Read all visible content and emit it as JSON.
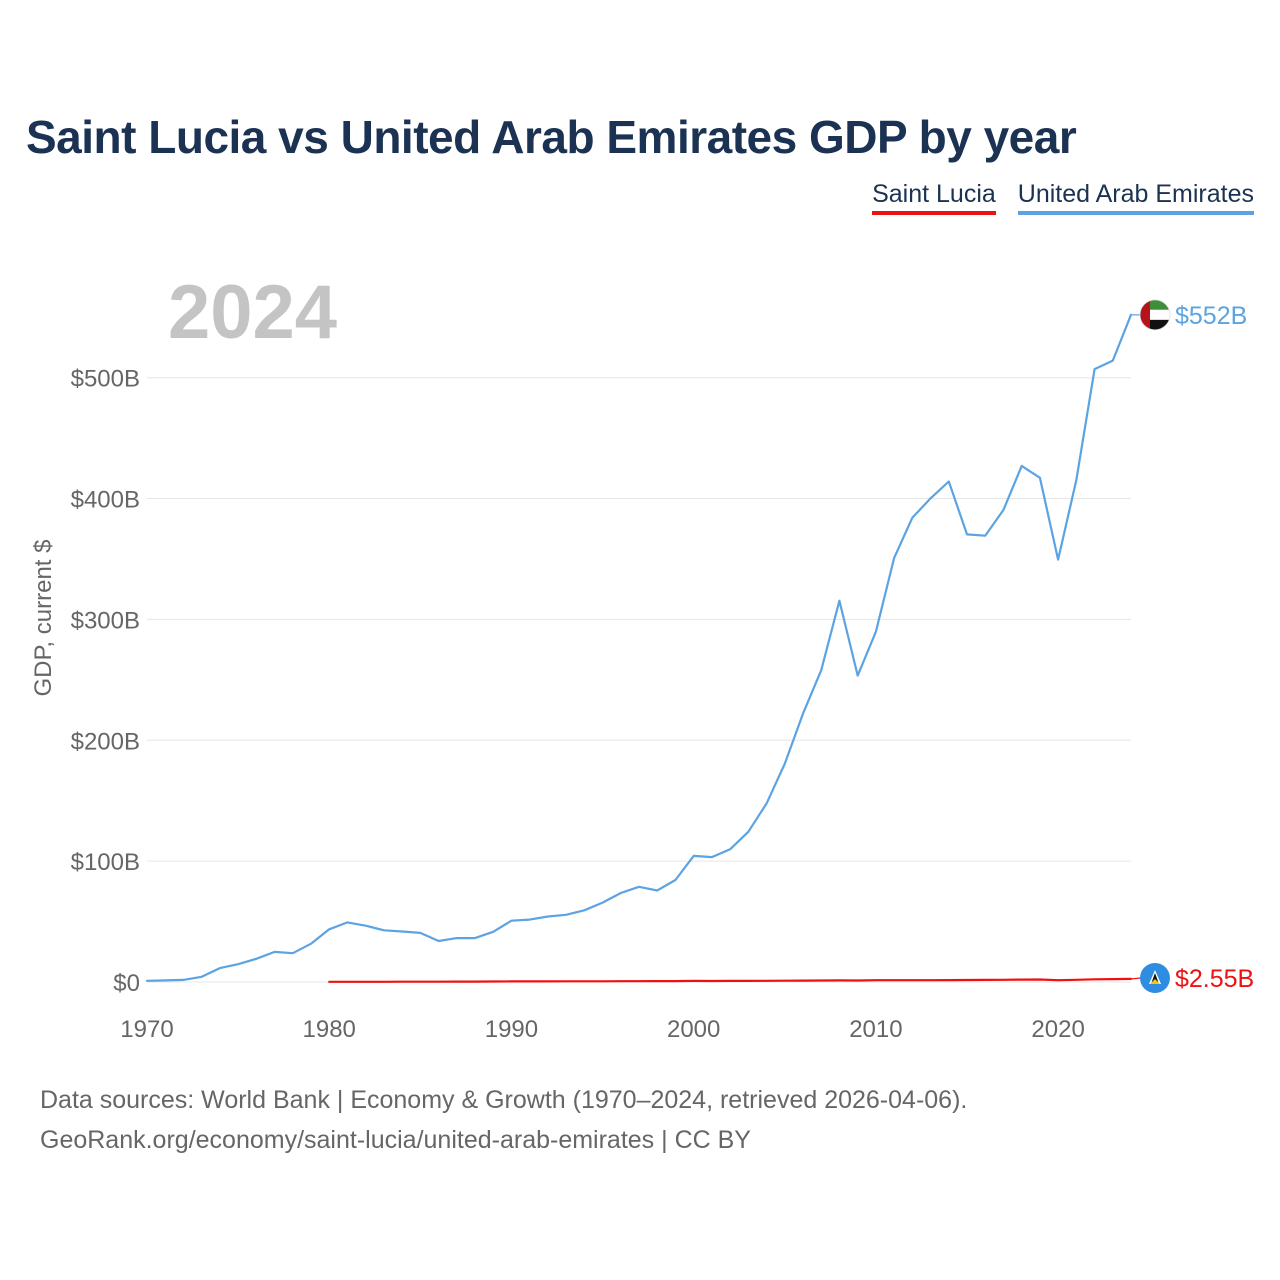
{
  "title": "Saint Lucia vs United Arab Emirates GDP by year",
  "legend": [
    {
      "name": "Saint Lucia",
      "color": "#ee1111"
    },
    {
      "name": "United Arab Emirates",
      "color": "#5ba3e3"
    }
  ],
  "source": {
    "line1": "Data sources: World Bank | Economy & Growth (1970–2024, retrieved 2026-04-06).",
    "line2": "GeoRank.org/economy/saint-lucia/united-arab-emirates | CC BY"
  },
  "chart_data": {
    "type": "line",
    "title": "Saint Lucia vs United Arab Emirates GDP by year",
    "year_label": "2024",
    "xlabel": "",
    "ylabel": "GDP, current $",
    "xlim": [
      1970,
      2024
    ],
    "ylim": [
      0,
      580
    ],
    "unit": "billions USD",
    "grid": true,
    "legend_position": "top-right",
    "x_ticks": [
      {
        "value": 1970,
        "label": "1970"
      },
      {
        "value": 1980,
        "label": "1980"
      },
      {
        "value": 1990,
        "label": "1990"
      },
      {
        "value": 2000,
        "label": "2000"
      },
      {
        "value": 2010,
        "label": "2010"
      },
      {
        "value": 2020,
        "label": "2020"
      }
    ],
    "y_ticks": [
      {
        "value": 0,
        "label": "$0"
      },
      {
        "value": 100,
        "label": "$100B"
      },
      {
        "value": 200,
        "label": "$200B"
      },
      {
        "value": 300,
        "label": "$300B"
      },
      {
        "value": 400,
        "label": "$400B"
      },
      {
        "value": 500,
        "label": "$500B"
      }
    ],
    "series": [
      {
        "name": "United Arab Emirates",
        "color": "#5ba3e3",
        "end_label": "$552B",
        "flag_icon": "uae-flag-icon",
        "x": [
          1970,
          1971,
          1972,
          1973,
          1974,
          1975,
          1976,
          1977,
          1978,
          1979,
          1980,
          1981,
          1982,
          1983,
          1984,
          1985,
          1986,
          1987,
          1988,
          1989,
          1990,
          1991,
          1992,
          1993,
          1994,
          1995,
          1996,
          1997,
          1998,
          1999,
          2000,
          2001,
          2002,
          2003,
          2004,
          2005,
          2006,
          2007,
          2008,
          2009,
          2010,
          2011,
          2012,
          2013,
          2014,
          2015,
          2016,
          2017,
          2018,
          2019,
          2020,
          2021,
          2022,
          2023,
          2024
        ],
        "values": [
          1.0,
          1.3,
          1.7,
          4.3,
          11.5,
          14.7,
          19.2,
          24.9,
          23.8,
          31.7,
          43.6,
          49.3,
          46.6,
          42.8,
          41.8,
          40.6,
          33.9,
          36.3,
          36.3,
          41.5,
          50.7,
          51.6,
          54.2,
          55.6,
          59.3,
          65.7,
          73.6,
          78.8,
          75.7,
          84.4,
          104.3,
          103.3,
          109.8,
          124.3,
          147.8,
          180.6,
          222.1,
          257.9,
          315.5,
          253.5,
          289.8,
          350.7,
          384.1,
          400.2,
          414.1,
          370.3,
          369.3,
          390.5,
          427.0,
          417.2,
          349.5,
          415.2,
          507.1,
          514.1,
          552.0
        ]
      },
      {
        "name": "Saint Lucia",
        "color": "#ee1111",
        "end_label": "$2.55B",
        "flag_icon": "saint-lucia-flag-icon",
        "x": [
          1980,
          1981,
          1982,
          1983,
          1984,
          1985,
          1986,
          1987,
          1988,
          1989,
          1990,
          1991,
          1992,
          1993,
          1994,
          1995,
          1996,
          1997,
          1998,
          1999,
          2000,
          2001,
          2002,
          2003,
          2004,
          2005,
          2006,
          2007,
          2008,
          2009,
          2010,
          2011,
          2012,
          2013,
          2014,
          2015,
          2016,
          2017,
          2018,
          2019,
          2020,
          2021,
          2022,
          2023,
          2024
        ],
        "values": [
          0.16,
          0.17,
          0.18,
          0.19,
          0.22,
          0.24,
          0.28,
          0.32,
          0.36,
          0.4,
          0.46,
          0.49,
          0.53,
          0.55,
          0.58,
          0.62,
          0.65,
          0.68,
          0.72,
          0.75,
          0.87,
          0.85,
          0.88,
          0.94,
          1.01,
          1.05,
          1.18,
          1.23,
          1.3,
          1.28,
          1.45,
          1.49,
          1.5,
          1.52,
          1.57,
          1.69,
          1.73,
          1.85,
          1.98,
          2.08,
          1.52,
          1.84,
          2.2,
          2.4,
          2.55
        ]
      }
    ]
  }
}
